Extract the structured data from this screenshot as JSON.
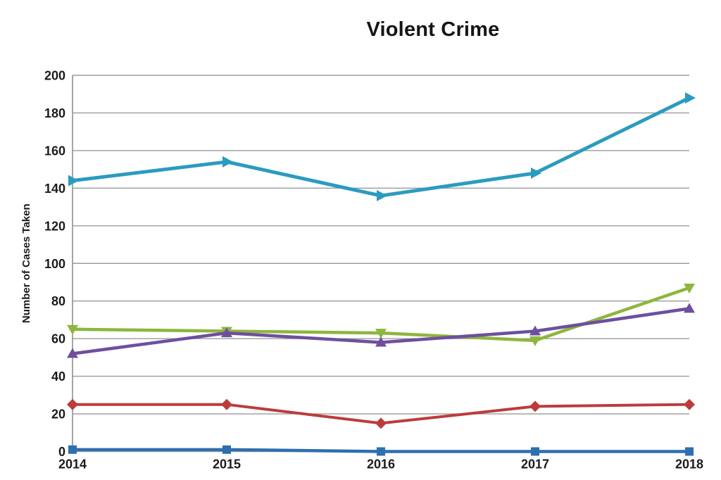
{
  "page": {
    "background_color": "#ffffff"
  },
  "chart_data": {
    "type": "line",
    "title": "Violent Crime",
    "xlabel": "",
    "ylabel": "Number of Cases Taken",
    "x": [
      2014,
      2015,
      2016,
      2017,
      2018
    ],
    "x_tick_labels": [
      "2014",
      "2015",
      "2016",
      "2017",
      "2018"
    ],
    "y_ticks": [
      0,
      20,
      40,
      60,
      80,
      100,
      120,
      140,
      160,
      180,
      200
    ],
    "ylim": [
      0,
      200
    ],
    "grid": true,
    "legend_position": "none",
    "gridline_color": "#9b9b9b",
    "axis_color": "#8f8f8f",
    "text_color": "#1b1b1b",
    "series": [
      {
        "name": "olive-green-series",
        "color": "#8DB63E",
        "marker": "triangle-down",
        "line_width": 4.5,
        "values": [
          65,
          64,
          63,
          59,
          87
        ]
      },
      {
        "name": "purple-series",
        "color": "#6E4F9E",
        "marker": "triangle-up",
        "line_width": 4.5,
        "values": [
          52,
          63,
          58,
          64,
          76
        ]
      },
      {
        "name": "red-series",
        "color": "#BC3C3C",
        "marker": "diamond",
        "line_width": 4,
        "values": [
          25,
          25,
          15,
          24,
          25
        ]
      },
      {
        "name": "blue-series",
        "color": "#2E6FAE",
        "marker": "square",
        "line_width": 4.5,
        "values": [
          1,
          1,
          0,
          0,
          0
        ]
      },
      {
        "name": "teal-series",
        "color": "#2B9BC0",
        "marker": "triangle-right",
        "line_width": 5,
        "values": [
          144,
          154,
          136,
          148,
          188
        ]
      }
    ]
  }
}
